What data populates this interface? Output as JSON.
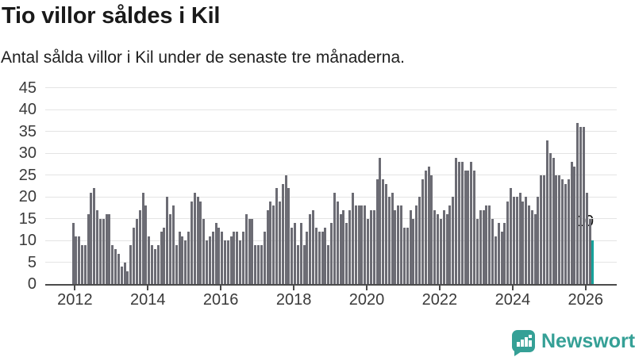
{
  "title": "Tio villor såldes i Kil",
  "subtitle": "Antal sålda villor i Kil under de senaste tre månaderna.",
  "annotation": {
    "last_value_label": "10"
  },
  "logo": {
    "text": "Newsworthy"
  },
  "colors": {
    "bar": "#6c6c74",
    "highlight": "#16a29b",
    "logo_teal": "#35a096",
    "gridline": "#e4e4e4",
    "axis": "#4b4b4b",
    "text": "#3a3a3a"
  },
  "chart_data": {
    "type": "bar",
    "title": "Tio villor såldes i Kil",
    "subtitle": "Antal sålda villor i Kil under de senaste tre månaderna.",
    "xlabel": "",
    "ylabel": "",
    "ylim": [
      0,
      45
    ],
    "grid": "horizontal",
    "ytick_labels": [
      "0",
      "5",
      "10",
      "15",
      "20",
      "25",
      "30",
      "35",
      "40",
      "45"
    ],
    "xtick_labels": [
      "2012",
      "2014",
      "2016",
      "2018",
      "2020",
      "2022",
      "2024",
      "2026"
    ],
    "xtick_first_bar_index": 1,
    "xtick_every_n_bars": 24,
    "highlight_last_bar": true,
    "highlight_last_bar_value_label": "10",
    "values": [
      14,
      11,
      11,
      9,
      9,
      16,
      21,
      22,
      17,
      15,
      15,
      16,
      16,
      9,
      8,
      7,
      4,
      5,
      3,
      9,
      13,
      15,
      17,
      21,
      18,
      11,
      9,
      8,
      9,
      12,
      13,
      20,
      16,
      18,
      9,
      12,
      11,
      10,
      12,
      19,
      21,
      20,
      19,
      15,
      10,
      11,
      12,
      14,
      13,
      12,
      10,
      10,
      11,
      12,
      12,
      10,
      12,
      16,
      15,
      15,
      9,
      9,
      9,
      12,
      17,
      19,
      18,
      22,
      19,
      23,
      25,
      22,
      13,
      14,
      9,
      14,
      9,
      12,
      16,
      17,
      13,
      12,
      12,
      13,
      9,
      14,
      21,
      19,
      16,
      17,
      14,
      17,
      21,
      18,
      18,
      18,
      18,
      15,
      17,
      17,
      24,
      29,
      24,
      23,
      20,
      21,
      17,
      18,
      18,
      13,
      13,
      17,
      15,
      18,
      20,
      24,
      26,
      27,
      25,
      17,
      16,
      15,
      17,
      16,
      18,
      20,
      29,
      28,
      28,
      26,
      26,
      28,
      26,
      15,
      17,
      17,
      18,
      18,
      15,
      11,
      14,
      12,
      14,
      19,
      22,
      20,
      20,
      21,
      19,
      20,
      18,
      17,
      16,
      20,
      25,
      25,
      33,
      30,
      29,
      25,
      25,
      24,
      23,
      24,
      28,
      27,
      37,
      36,
      36,
      21,
      15,
      10
    ]
  }
}
